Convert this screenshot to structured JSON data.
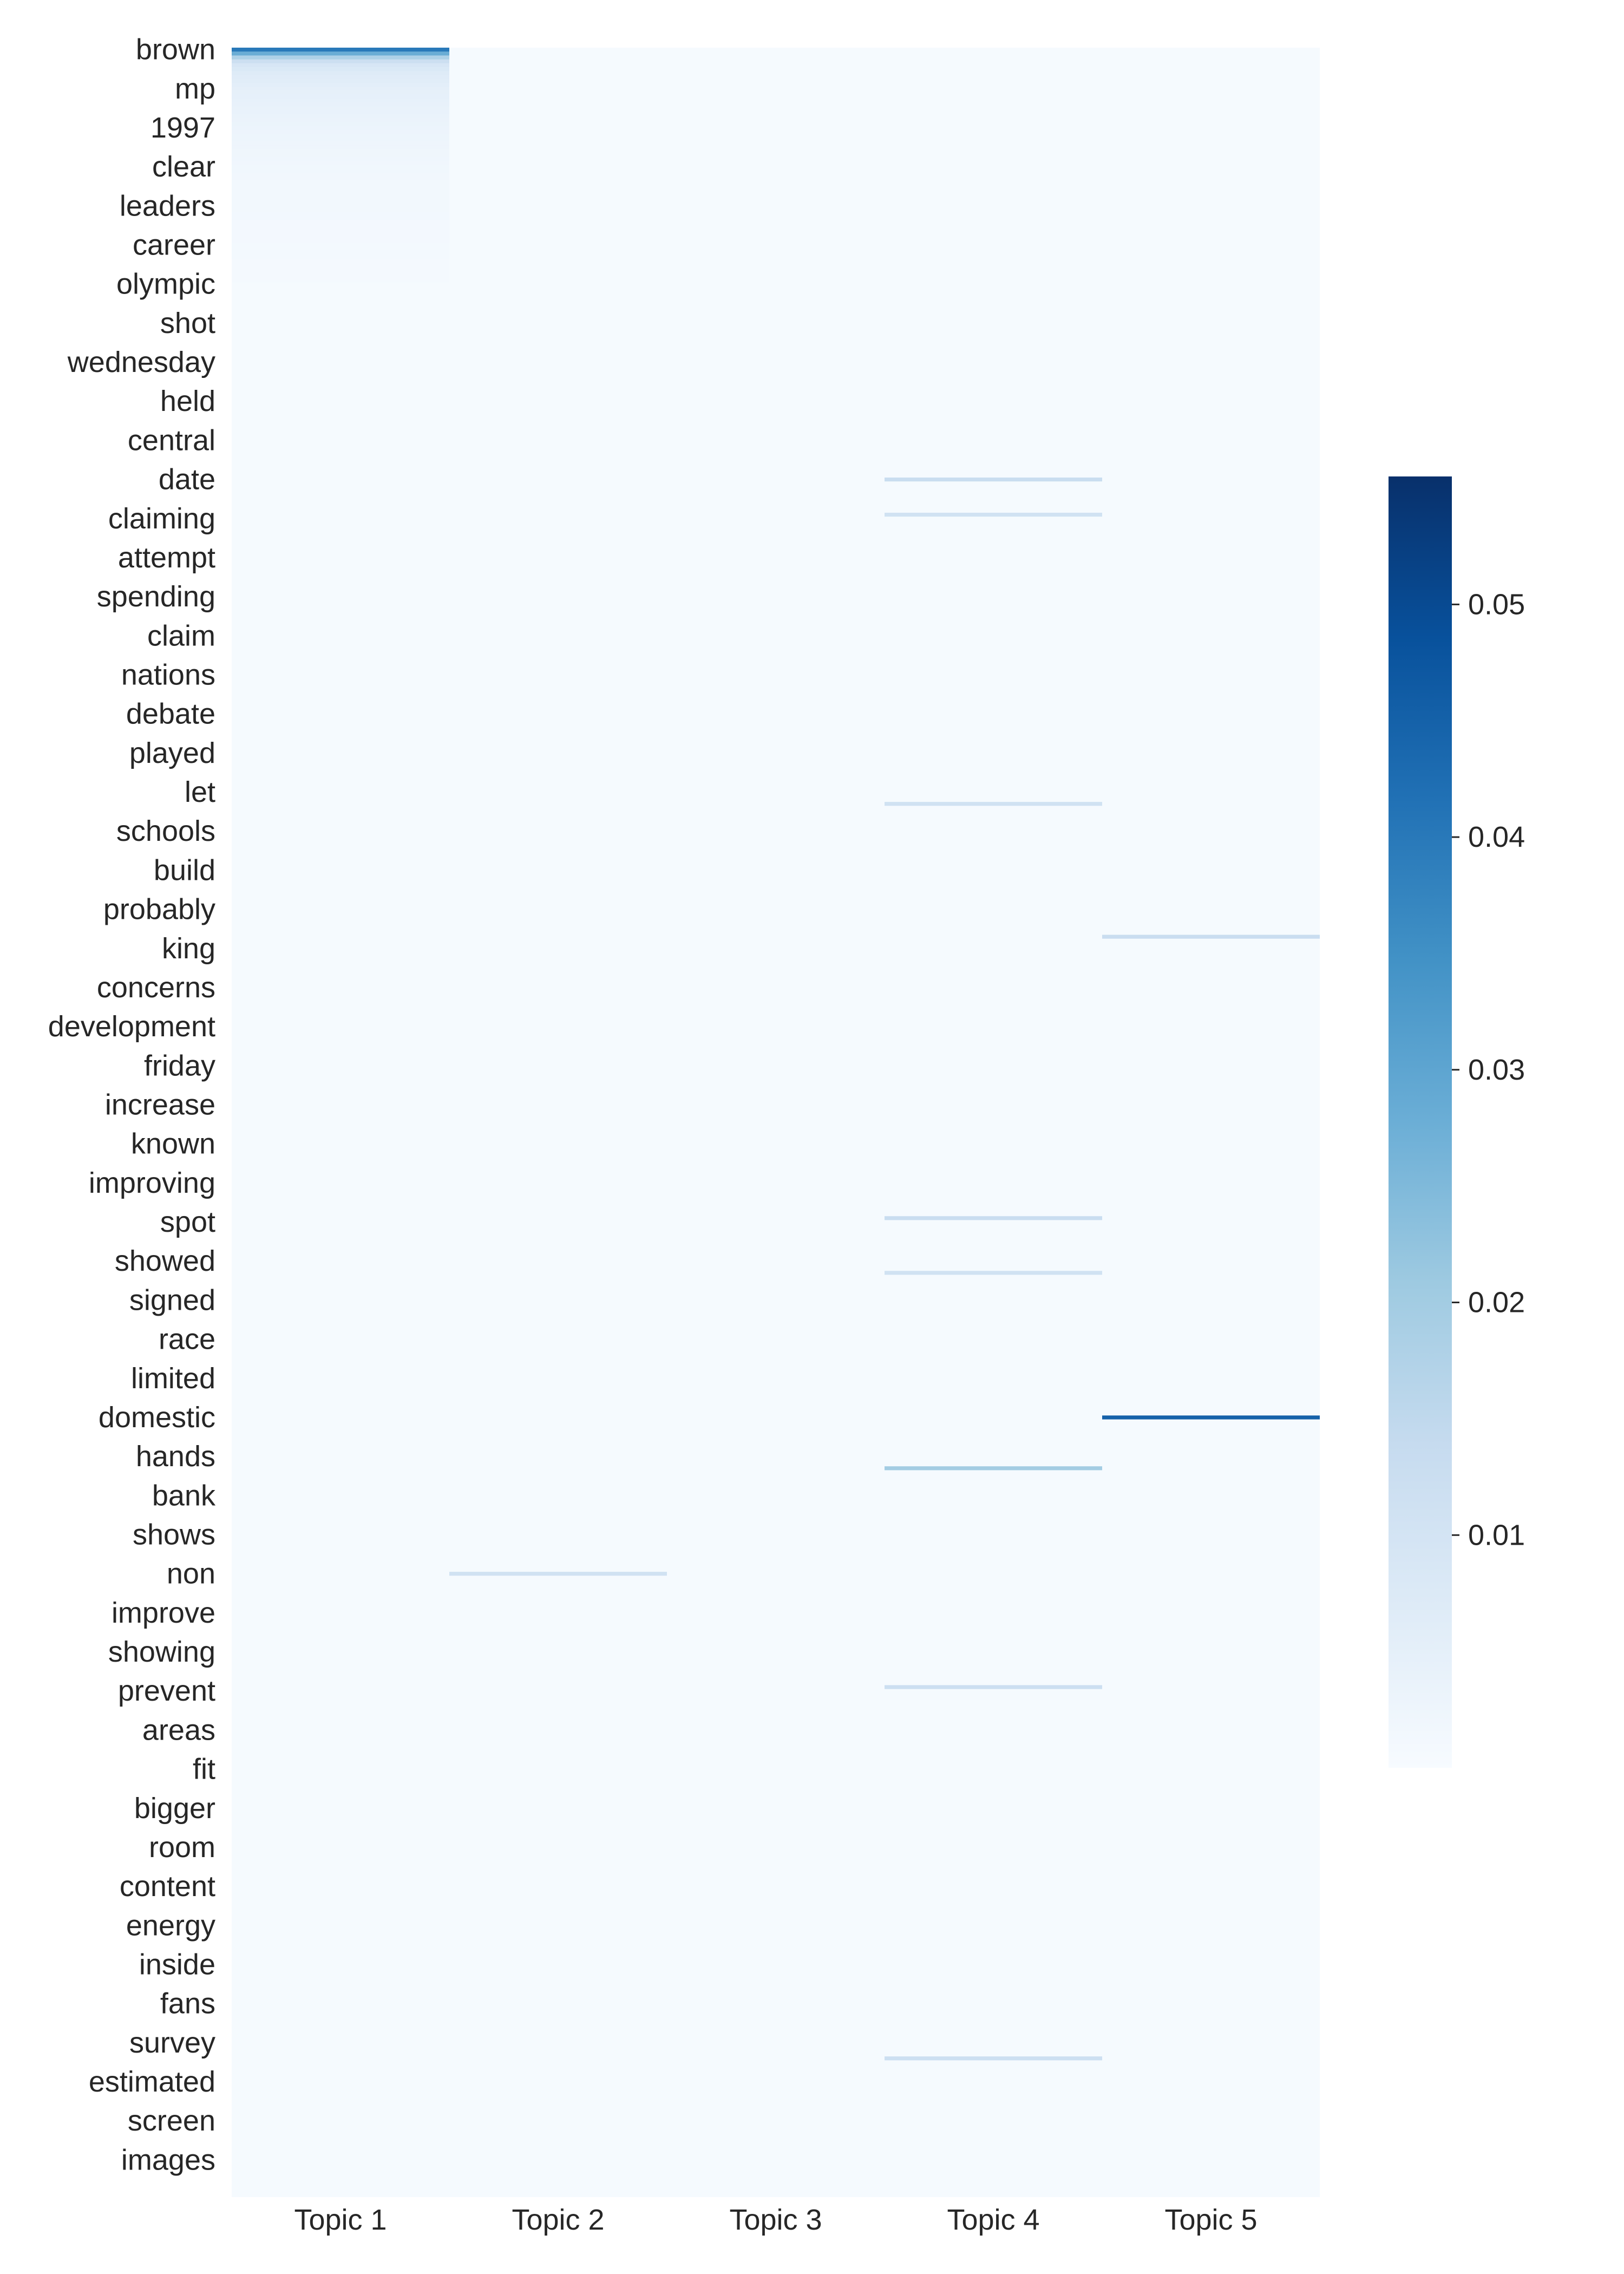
{
  "chart_data": {
    "type": "heatmap",
    "title": "",
    "xlabel": "",
    "ylabel": "",
    "columns": [
      "Topic 1",
      "Topic 2",
      "Topic 3",
      "Topic 4",
      "Topic 5"
    ],
    "row_tick_labels": [
      "brown",
      "mp",
      "1997",
      "clear",
      "leaders",
      "career",
      "olympic",
      "shot",
      "wednesday",
      "held",
      "central",
      "date",
      "claiming",
      "attempt",
      "spending",
      "claim",
      "nations",
      "debate",
      "played",
      "let",
      "schools",
      "build",
      "probably",
      "king",
      "concerns",
      "development",
      "friday",
      "increase",
      "known",
      "improving",
      "spot",
      "showed",
      "signed",
      "race",
      "limited",
      "domestic",
      "hands",
      "bank",
      "shows",
      "non",
      "improve",
      "showing",
      "prevent",
      "areas",
      "fit",
      "bigger",
      "room",
      "content",
      "energy",
      "inside",
      "fans",
      "survey",
      "estimated",
      "screen",
      "images"
    ],
    "row_count": 550,
    "background_value": 0.0006,
    "colormap": "Blues",
    "color_range": [
      0.0,
      0.0555
    ],
    "colorbar": {
      "ticks": [
        0.01,
        0.02,
        0.03,
        0.04,
        0.05
      ],
      "tick_labels": [
        "0.01",
        "0.02",
        "0.03",
        "0.04",
        "0.05"
      ]
    },
    "topic1_profile": [
      {
        "row": 0,
        "value": 0.04
      },
      {
        "row": 1,
        "value": 0.028
      },
      {
        "row": 2,
        "value": 0.018
      },
      {
        "row": 3,
        "value": 0.012
      },
      {
        "row": 4,
        "value": 0.009
      },
      {
        "row": 6,
        "value": 0.007
      },
      {
        "row": 10,
        "value": 0.005
      },
      {
        "row": 20,
        "value": 0.003
      },
      {
        "row": 34,
        "value": 0.0015
      },
      {
        "row": 60,
        "value": 0.0008
      }
    ],
    "highlight_cells": [
      {
        "row": 350,
        "column": "Topic 5",
        "value": 0.045
      },
      {
        "row": 363,
        "column": "Topic 4",
        "value": 0.02
      },
      {
        "row": 110,
        "column": "Topic 4",
        "value": 0.013
      },
      {
        "row": 299,
        "column": "Topic 4",
        "value": 0.013
      },
      {
        "row": 119,
        "column": "Topic 4",
        "value": 0.011
      },
      {
        "row": 313,
        "column": "Topic 4",
        "value": 0.011
      },
      {
        "row": 227,
        "column": "Topic 5",
        "value": 0.013
      },
      {
        "row": 193,
        "column": "Topic 4",
        "value": 0.011
      },
      {
        "row": 390,
        "column": "Topic 2",
        "value": 0.011
      },
      {
        "row": 419,
        "column": "Topic 4",
        "value": 0.012
      },
      {
        "row": 514,
        "column": "Topic 4",
        "value": 0.012
      }
    ]
  }
}
